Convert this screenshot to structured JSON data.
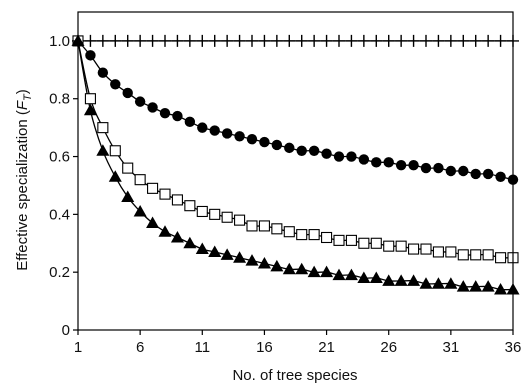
{
  "chart_data": {
    "type": "line",
    "title": "",
    "xlabel": "No. of  tree species",
    "ylabel": "Effective specialization (",
    "ylabel_symbol": "F",
    "ylabel_subscript": "T",
    "ylabel_suffix": ")",
    "xlim": [
      1,
      36
    ],
    "ylim": [
      0,
      1.1
    ],
    "xticks": [
      1,
      6,
      11,
      16,
      21,
      26,
      31,
      36
    ],
    "yticks": [
      0,
      0.2,
      0.4,
      0.6,
      0.8,
      1.0
    ],
    "ytick_labels": [
      "0",
      "0.2",
      "0.4",
      "0.6",
      "0.8",
      "1.0"
    ],
    "grid": false,
    "x": [
      1,
      2,
      3,
      4,
      5,
      6,
      7,
      8,
      9,
      10,
      11,
      12,
      13,
      14,
      15,
      16,
      17,
      18,
      19,
      20,
      21,
      22,
      23,
      24,
      25,
      26,
      27,
      28,
      29,
      30,
      31,
      32,
      33,
      34,
      35,
      36
    ],
    "series": [
      {
        "marker": "plus",
        "values": [
          1.0,
          1.0,
          1.0,
          1.0,
          1.0,
          1.0,
          1.0,
          1.0,
          1.0,
          1.0,
          1.0,
          1.0,
          1.0,
          1.0,
          1.0,
          1.0,
          1.0,
          1.0,
          1.0,
          1.0,
          1.0,
          1.0,
          1.0,
          1.0,
          1.0,
          1.0,
          1.0,
          1.0,
          1.0,
          1.0,
          1.0,
          1.0,
          1.0,
          1.0,
          1.0,
          1.0
        ]
      },
      {
        "marker": "filled-circle",
        "values": [
          1.0,
          0.95,
          0.89,
          0.85,
          0.82,
          0.79,
          0.77,
          0.75,
          0.74,
          0.72,
          0.7,
          0.69,
          0.68,
          0.67,
          0.66,
          0.65,
          0.64,
          0.63,
          0.62,
          0.62,
          0.61,
          0.6,
          0.6,
          0.59,
          0.58,
          0.58,
          0.57,
          0.57,
          0.56,
          0.56,
          0.55,
          0.55,
          0.54,
          0.54,
          0.53,
          0.52
        ]
      },
      {
        "marker": "open-square",
        "values": [
          1.0,
          0.8,
          0.7,
          0.62,
          0.56,
          0.52,
          0.49,
          0.47,
          0.45,
          0.43,
          0.41,
          0.4,
          0.39,
          0.38,
          0.36,
          0.36,
          0.35,
          0.34,
          0.33,
          0.33,
          0.32,
          0.31,
          0.31,
          0.3,
          0.3,
          0.29,
          0.29,
          0.28,
          0.28,
          0.27,
          0.27,
          0.26,
          0.26,
          0.26,
          0.25,
          0.25
        ]
      },
      {
        "marker": "filled-triangle",
        "values": [
          1.0,
          0.76,
          0.62,
          0.53,
          0.46,
          0.41,
          0.37,
          0.34,
          0.32,
          0.3,
          0.28,
          0.27,
          0.26,
          0.25,
          0.24,
          0.23,
          0.22,
          0.21,
          0.21,
          0.2,
          0.2,
          0.19,
          0.19,
          0.18,
          0.18,
          0.17,
          0.17,
          0.17,
          0.16,
          0.16,
          0.16,
          0.15,
          0.15,
          0.15,
          0.14,
          0.14
        ]
      }
    ]
  }
}
